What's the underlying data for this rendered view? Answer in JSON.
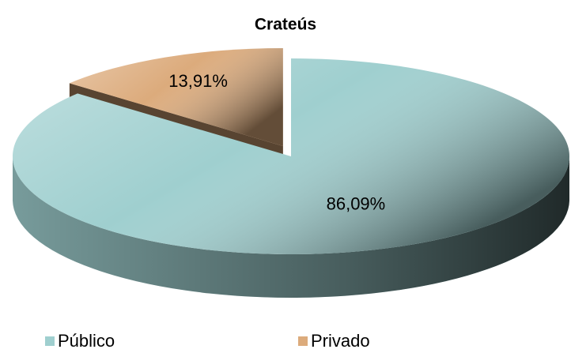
{
  "chart_data": {
    "type": "pie",
    "title": "Crateús",
    "categories": [
      "Público",
      "Privado"
    ],
    "values": [
      86.09,
      13.91
    ],
    "value_labels": [
      "86,09%",
      "13,91%"
    ],
    "colors": [
      "#9fcfcf",
      "#dcab7c"
    ],
    "legend": "bottom"
  }
}
